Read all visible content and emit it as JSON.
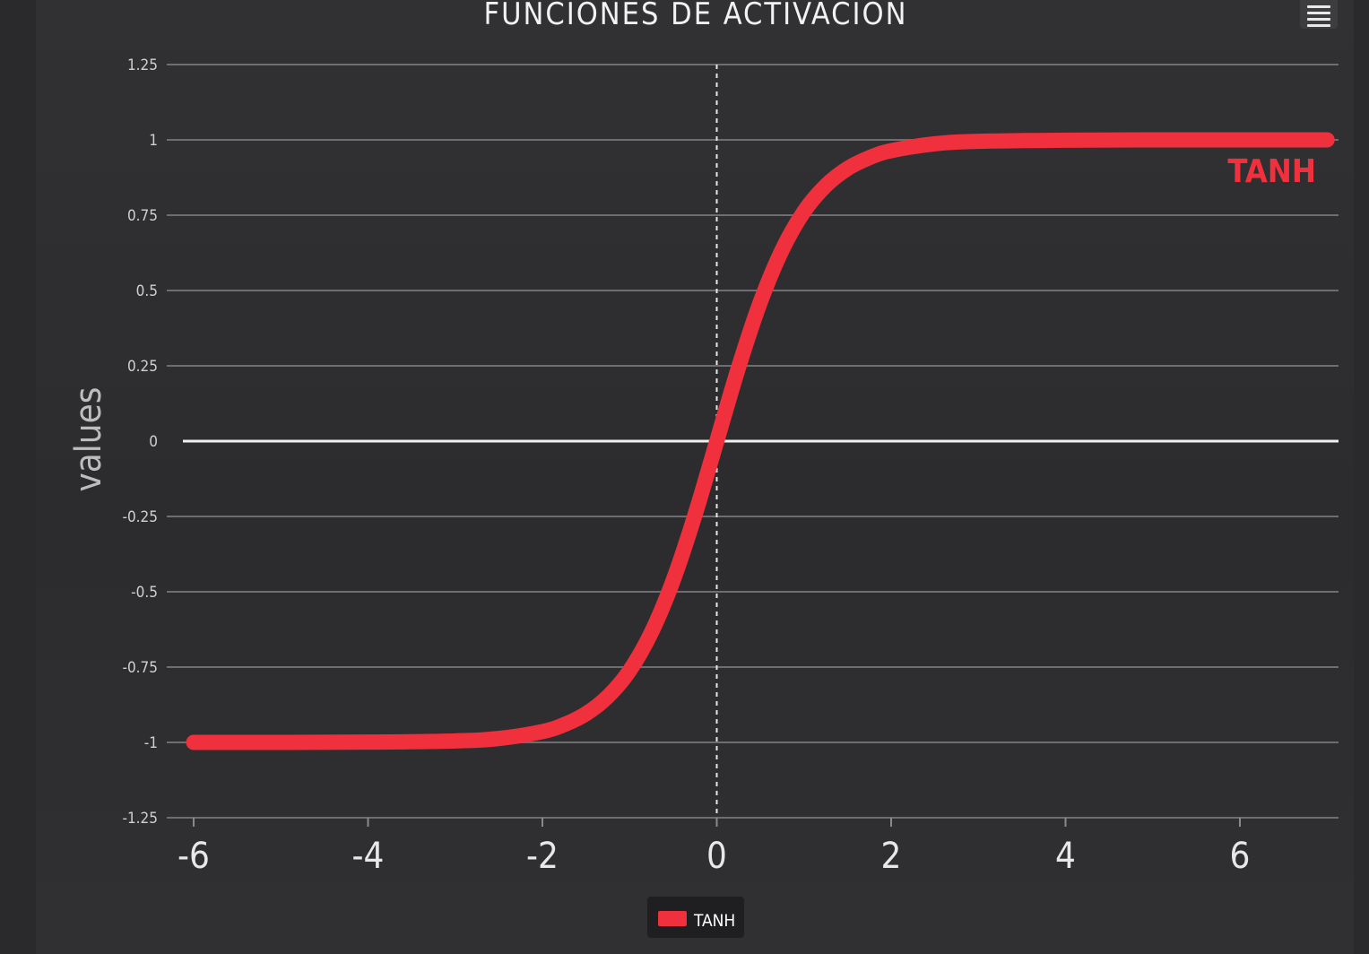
{
  "chart_data": {
    "type": "line",
    "title": "FUNCIONES DE ACTIVACION",
    "ylabel": "values",
    "xlim": [
      -6,
      7
    ],
    "ylim": [
      -1.25,
      1.25
    ],
    "x_ticks": [
      "-6",
      "-4",
      "-2",
      "0",
      "2",
      "4",
      "6"
    ],
    "y_ticks": [
      "1.25",
      "1",
      "0.75",
      "0.5",
      "0.25",
      "0",
      "-0.25",
      "-0.5",
      "-0.75",
      "-1",
      "-1.25"
    ],
    "grid": true,
    "legend_position": "bottom-center",
    "series": [
      {
        "name": "TANH",
        "color": "#f0303c",
        "x": [
          -6,
          -5,
          -4,
          -3,
          -2.5,
          -2,
          -1.75,
          -1.5,
          -1.25,
          -1,
          -0.75,
          -0.5,
          -0.25,
          0,
          0.25,
          0.5,
          0.75,
          1,
          1.25,
          1.5,
          1.75,
          2,
          2.5,
          3,
          4,
          5,
          6,
          7
        ],
        "y": [
          -1.0,
          -1.0,
          -0.999,
          -0.995,
          -0.987,
          -0.964,
          -0.941,
          -0.905,
          -0.848,
          -0.762,
          -0.635,
          -0.462,
          -0.245,
          0.0,
          0.245,
          0.462,
          0.635,
          0.762,
          0.848,
          0.905,
          0.941,
          0.964,
          0.987,
          0.995,
          0.999,
          1.0,
          1.0,
          1.0
        ]
      }
    ],
    "annotations": [
      {
        "text": "TANH",
        "color": "#f0303c"
      }
    ]
  },
  "toolbar": {
    "menu_icon": "hamburger-menu-icon"
  }
}
